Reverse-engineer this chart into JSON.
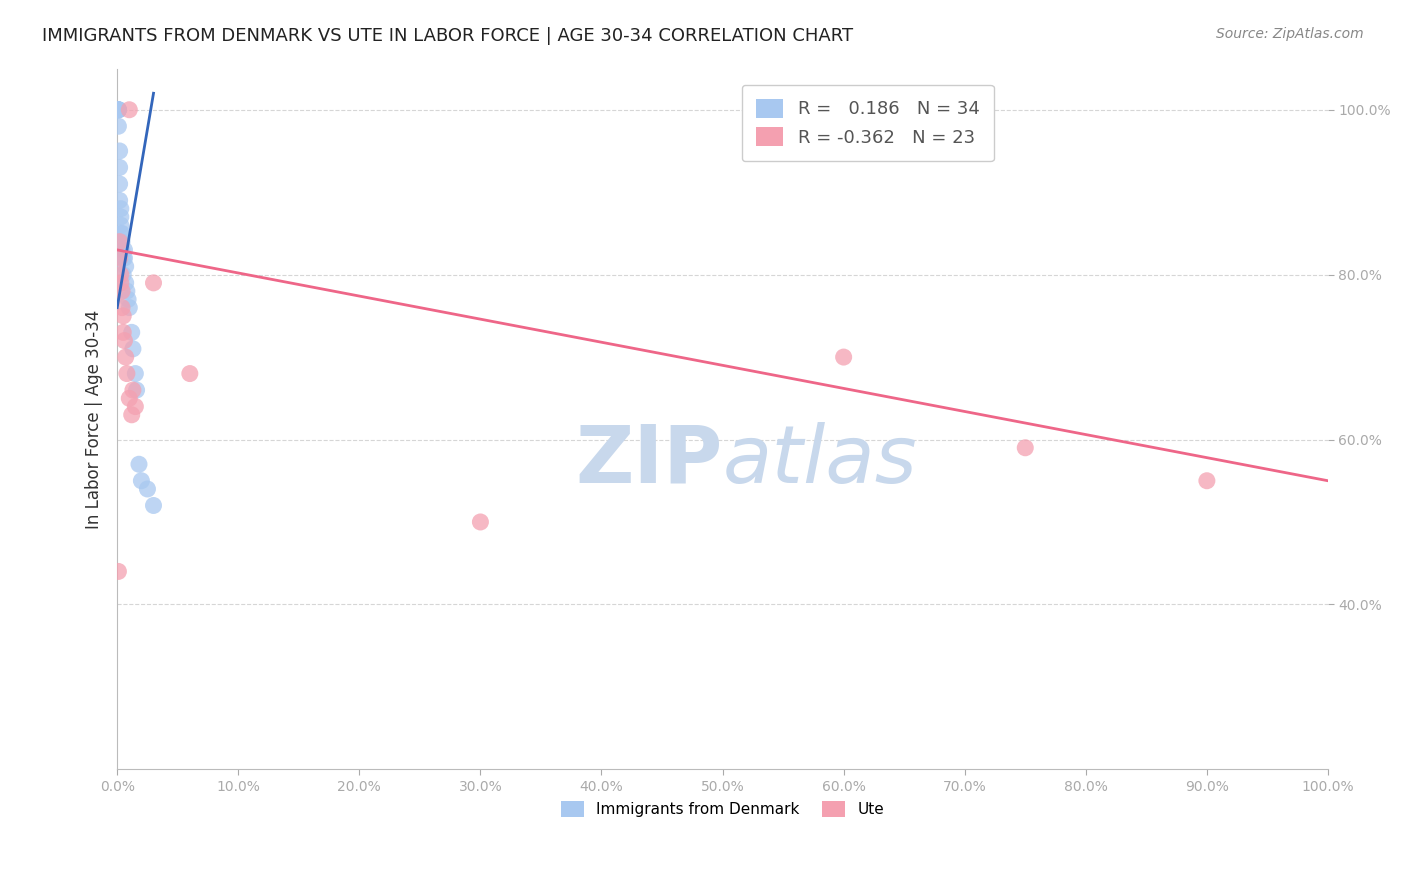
{
  "title": "IMMIGRANTS FROM DENMARK VS UTE IN LABOR FORCE | AGE 30-34 CORRELATION CHART",
  "source": "Source: ZipAtlas.com",
  "ylabel": "In Labor Force | Age 30-34",
  "xlabel_blue": "Immigrants from Denmark",
  "xlabel_pink": "Ute",
  "xlim": [
    0.0,
    1.0
  ],
  "ylim": [
    0.2,
    1.05
  ],
  "x_ticks": [
    0.0,
    0.1,
    0.2,
    0.3,
    0.4,
    0.5,
    0.6,
    0.7,
    0.8,
    0.9,
    1.0
  ],
  "y_ticks": [
    0.4,
    0.6,
    0.8,
    1.0
  ],
  "blue_R": 0.186,
  "blue_N": 34,
  "pink_R": -0.362,
  "pink_N": 23,
  "blue_color": "#A8C8F0",
  "pink_color": "#F4A0B0",
  "blue_line_color": "#3366BB",
  "pink_line_color": "#EE6688",
  "watermark_zip": "ZIP",
  "watermark_atlas": "atlas",
  "background_color": "#FFFFFF",
  "grid_color": "#CCCCCC",
  "blue_points_x": [
    0.001,
    0.001,
    0.001,
    0.001,
    0.001,
    0.001,
    0.002,
    0.002,
    0.002,
    0.002,
    0.003,
    0.003,
    0.003,
    0.003,
    0.004,
    0.004,
    0.004,
    0.005,
    0.005,
    0.006,
    0.006,
    0.007,
    0.007,
    0.008,
    0.009,
    0.01,
    0.012,
    0.013,
    0.015,
    0.016,
    0.018,
    0.02,
    0.025,
    0.03
  ],
  "blue_points_y": [
    1.0,
    1.0,
    1.0,
    1.0,
    1.0,
    0.98,
    0.95,
    0.93,
    0.91,
    0.89,
    0.88,
    0.87,
    0.86,
    0.85,
    0.85,
    0.84,
    0.83,
    0.82,
    0.8,
    0.83,
    0.82,
    0.81,
    0.79,
    0.78,
    0.77,
    0.76,
    0.73,
    0.71,
    0.68,
    0.66,
    0.57,
    0.55,
    0.54,
    0.52
  ],
  "pink_points_x": [
    0.001,
    0.002,
    0.002,
    0.003,
    0.003,
    0.004,
    0.004,
    0.005,
    0.005,
    0.006,
    0.007,
    0.008,
    0.01,
    0.012,
    0.013,
    0.015,
    0.03,
    0.06,
    0.3,
    0.6,
    0.75,
    0.9,
    0.01
  ],
  "pink_points_y": [
    0.44,
    0.84,
    0.82,
    0.8,
    0.79,
    0.78,
    0.76,
    0.75,
    0.73,
    0.72,
    0.7,
    0.68,
    0.65,
    0.63,
    0.66,
    0.64,
    0.79,
    0.68,
    0.5,
    0.7,
    0.59,
    0.55,
    1.0
  ],
  "blue_line_x": [
    0.0,
    0.03
  ],
  "blue_line_y_intercept": 0.78,
  "blue_line_slope": 7.0,
  "pink_line_x": [
    0.0,
    1.0
  ],
  "pink_line_y_start": 0.82,
  "pink_line_y_end": 0.55
}
